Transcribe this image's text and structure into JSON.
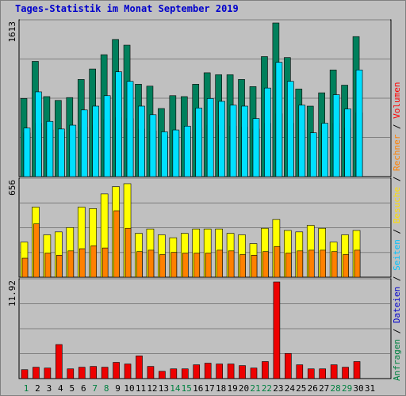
{
  "title": "Tages-Statistik im Monat September 2019",
  "legend_right": [
    {
      "text": "Anfragen",
      "color": "#008040"
    },
    {
      "text": " / ",
      "color": "#000000"
    },
    {
      "text": "Dateien",
      "color": "#0000cc"
    },
    {
      "text": " / ",
      "color": "#000000"
    },
    {
      "text": "Seiten",
      "color": "#00c0ff"
    },
    {
      "text": " / ",
      "color": "#000000"
    },
    {
      "text": "Besuche",
      "color": "#ffdd00"
    },
    {
      "text": " / ",
      "color": "#000000"
    },
    {
      "text": "Rechner",
      "color": "#ff8000"
    },
    {
      "text": " / ",
      "color": "#000000"
    },
    {
      "text": "Volumen",
      "color": "#ff0000"
    }
  ],
  "colors": {
    "anfragen": "#00805c",
    "dateien": "#0000cc",
    "seiten": "#00e0ff",
    "besuche": "#ffff00",
    "rechner": "#ff8000",
    "volumen": "#ee0000",
    "weekday_label": "#000000",
    "weekend_label": "#008040"
  },
  "chart_data": [
    {
      "type": "bar",
      "panel": "hits",
      "ymax_label": "1613",
      "ylim": [
        0,
        1613
      ],
      "categories": [
        "1",
        "2",
        "3",
        "4",
        "5",
        "6",
        "7",
        "8",
        "9",
        "10",
        "11",
        "12",
        "13",
        "14",
        "15",
        "16",
        "17",
        "18",
        "19",
        "20",
        "21",
        "22",
        "23",
        "24",
        "25",
        "26",
        "27",
        "28",
        "29",
        "30"
      ],
      "weekend": [
        "1",
        "7",
        "8",
        "14",
        "15",
        "21",
        "22",
        "28",
        "29"
      ],
      "series": [
        {
          "name": "Anfragen",
          "values": [
            820,
            1210,
            840,
            800,
            830,
            1020,
            1130,
            1280,
            1440,
            1380,
            970,
            950,
            715,
            850,
            840,
            970,
            1090,
            1070,
            1070,
            1020,
            945,
            1260,
            1613,
            1250,
            920,
            740,
            880,
            1120,
            960,
            1470
          ]
        },
        {
          "name": "Dateien",
          "values": [
            460,
            560,
            490,
            470,
            480,
            520,
            540,
            600,
            620,
            610,
            500,
            480,
            430,
            480,
            470,
            510,
            540,
            540,
            530,
            520,
            500,
            560,
            660,
            560,
            490,
            450,
            480,
            560,
            510,
            670
          ]
        },
        {
          "name": "Seiten",
          "values": [
            510,
            890,
            580,
            500,
            540,
            700,
            740,
            850,
            1100,
            1000,
            740,
            650,
            470,
            490,
            530,
            720,
            820,
            790,
            750,
            740,
            610,
            930,
            1200,
            1000,
            750,
            460,
            560,
            860,
            710,
            1120
          ]
        }
      ]
    },
    {
      "type": "bar",
      "panel": "visits",
      "ymax_label": "656",
      "ylim": [
        0,
        656
      ],
      "categories": [
        "1",
        "2",
        "3",
        "4",
        "5",
        "6",
        "7",
        "8",
        "9",
        "10",
        "11",
        "12",
        "13",
        "14",
        "15",
        "16",
        "17",
        "18",
        "19",
        "20",
        "21",
        "22",
        "23",
        "24",
        "25",
        "26",
        "27",
        "28",
        "29",
        "30"
      ],
      "series": [
        {
          "name": "Besuche",
          "values": [
            240,
            480,
            290,
            310,
            340,
            480,
            470,
            570,
            620,
            640,
            300,
            330,
            290,
            270,
            300,
            330,
            330,
            330,
            300,
            290,
            230,
            335,
            395,
            320,
            310,
            355,
            335,
            240,
            290,
            320
          ]
        },
        {
          "name": "Rechner",
          "values": [
            130,
            365,
            165,
            150,
            180,
            195,
            215,
            200,
            455,
            335,
            175,
            185,
            155,
            170,
            165,
            165,
            165,
            185,
            180,
            155,
            150,
            175,
            210,
            165,
            180,
            185,
            185,
            175,
            155,
            185
          ]
        }
      ]
    },
    {
      "type": "bar",
      "panel": "volume",
      "ymax_label": "11.92",
      "ylim": [
        0,
        11.92
      ],
      "categories": [
        "1",
        "2",
        "3",
        "4",
        "5",
        "6",
        "7",
        "8",
        "9",
        "10",
        "11",
        "12",
        "13",
        "14",
        "15",
        "16",
        "17",
        "18",
        "19",
        "20",
        "21",
        "22",
        "23",
        "24",
        "25",
        "26",
        "27",
        "28",
        "29",
        "30"
      ],
      "series": [
        {
          "name": "Volumen",
          "values": [
            1.1,
            1.4,
            1.3,
            4.2,
            1.2,
            1.4,
            1.5,
            1.4,
            2.0,
            1.8,
            2.8,
            1.5,
            0.9,
            1.2,
            1.2,
            1.7,
            1.9,
            1.8,
            1.8,
            1.6,
            1.3,
            2.1,
            11.92,
            3.1,
            1.7,
            1.2,
            1.2,
            1.7,
            1.4,
            2.1
          ]
        }
      ]
    }
  ],
  "x_labels": [
    "1",
    "2",
    "3",
    "4",
    "5",
    "6",
    "7",
    "8",
    "9",
    "10",
    "11",
    "12",
    "13",
    "14",
    "15",
    "16",
    "17",
    "18",
    "19",
    "20",
    "21",
    "22",
    "23",
    "24",
    "25",
    "26",
    "27",
    "28",
    "29",
    "30",
    "31"
  ],
  "x_weekend": [
    "1",
    "7",
    "8",
    "14",
    "15",
    "21",
    "22",
    "28",
    "29"
  ]
}
